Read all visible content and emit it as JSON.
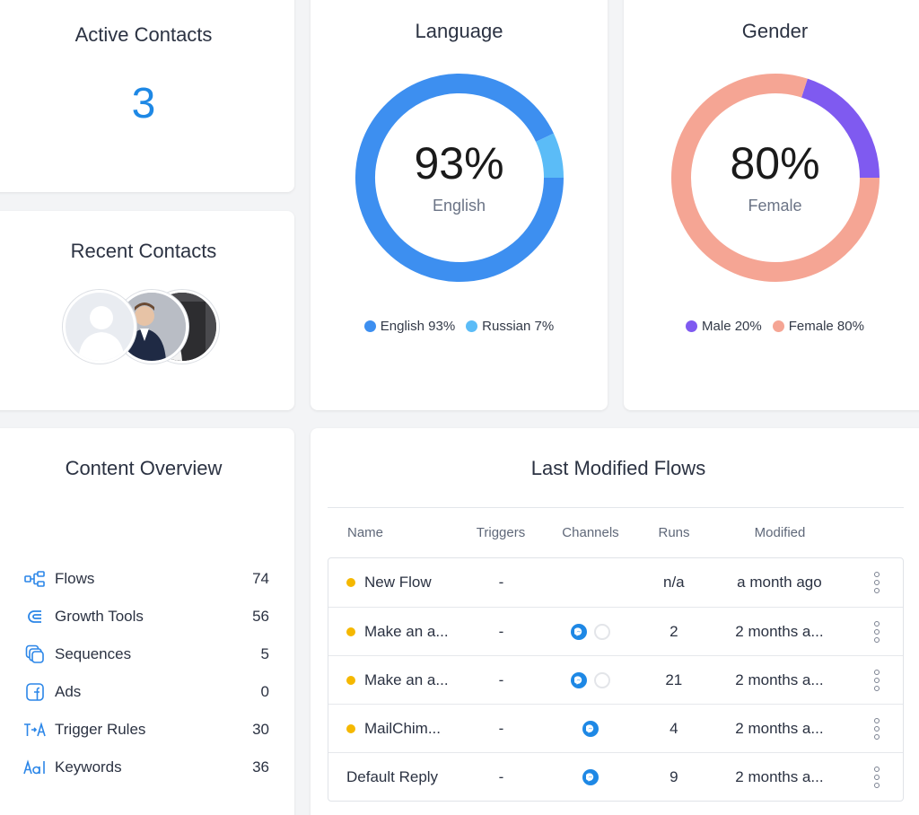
{
  "active_contacts": {
    "title": "Active Contacts",
    "value": "3"
  },
  "recent_contacts": {
    "title": "Recent Contacts"
  },
  "language": {
    "title": "Language",
    "center_value": "93%",
    "center_label": "English",
    "legend": [
      {
        "label": "English 93%",
        "color": "#3d8ff0"
      },
      {
        "label": "Russian 7%",
        "color": "#5bbcf7"
      }
    ],
    "chart_data": {
      "type": "pie",
      "categories": [
        "English",
        "Russian"
      ],
      "values": [
        93,
        7
      ]
    }
  },
  "gender": {
    "title": "Gender",
    "center_value": "80%",
    "center_label": "Female",
    "legend": [
      {
        "label": "Male 20%",
        "color": "#7f5af0"
      },
      {
        "label": "Female 80%",
        "color": "#f5a594"
      }
    ],
    "chart_data": {
      "type": "pie",
      "categories": [
        "Male",
        "Female"
      ],
      "values": [
        20,
        80
      ]
    }
  },
  "content_overview": {
    "title": "Content Overview",
    "items": [
      {
        "label": "Flows",
        "count": "74",
        "icon": "flows-icon"
      },
      {
        "label": "Growth Tools",
        "count": "56",
        "icon": "growth-tools-icon"
      },
      {
        "label": "Sequences",
        "count": "5",
        "icon": "sequences-icon"
      },
      {
        "label": "Ads",
        "count": "0",
        "icon": "facebook-ads-icon"
      },
      {
        "label": "Trigger Rules",
        "count": "30",
        "icon": "trigger-rules-icon"
      },
      {
        "label": "Keywords",
        "count": "36",
        "icon": "keywords-icon"
      }
    ]
  },
  "flows": {
    "title": "Last Modified Flows",
    "headers": {
      "name": "Name",
      "triggers": "Triggers",
      "channels": "Channels",
      "runs": "Runs",
      "modified": "Modified"
    },
    "rows": [
      {
        "name": "New Flow",
        "triggers": "-",
        "runs": "n/a",
        "modified": "a month ago",
        "draft": true,
        "channels": []
      },
      {
        "name": "Make an a...",
        "triggers": "-",
        "runs": "2",
        "modified": "2 months a...",
        "draft": true,
        "channels": [
          "messenger",
          "inactive"
        ]
      },
      {
        "name": "Make an a...",
        "triggers": "-",
        "runs": "21",
        "modified": "2 months a...",
        "draft": true,
        "channels": [
          "messenger",
          "inactive"
        ]
      },
      {
        "name": "MailChim...",
        "triggers": "-",
        "runs": "4",
        "modified": "2 months a...",
        "draft": true,
        "channels": [
          "messenger"
        ]
      },
      {
        "name": "Default Reply",
        "triggers": "-",
        "runs": "9",
        "modified": "2 months a...",
        "draft": false,
        "channels": [
          "messenger"
        ]
      }
    ]
  },
  "colors": {
    "accent": "#1e88e5",
    "draft_dot": "#f5b800"
  }
}
